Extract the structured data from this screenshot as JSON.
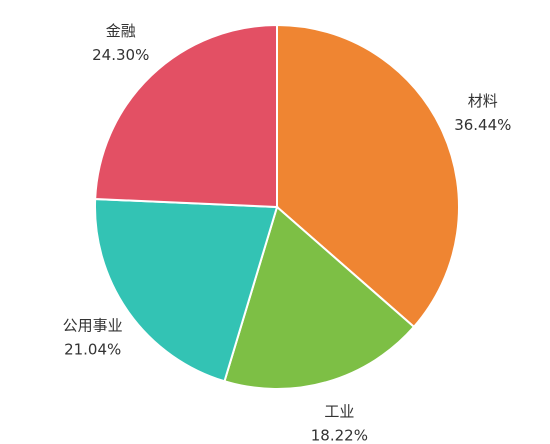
{
  "chart_data": {
    "type": "pie",
    "categories": [
      "材料",
      "工业",
      "公用事业",
      "金融"
    ],
    "values": [
      36.44,
      18.22,
      21.04,
      24.3
    ],
    "value_labels": [
      "36.44%",
      "18.22%",
      "21.04%",
      "24.30%"
    ],
    "colors": [
      "#ef8532",
      "#7dbf45",
      "#33c3b4",
      "#e35064"
    ]
  }
}
